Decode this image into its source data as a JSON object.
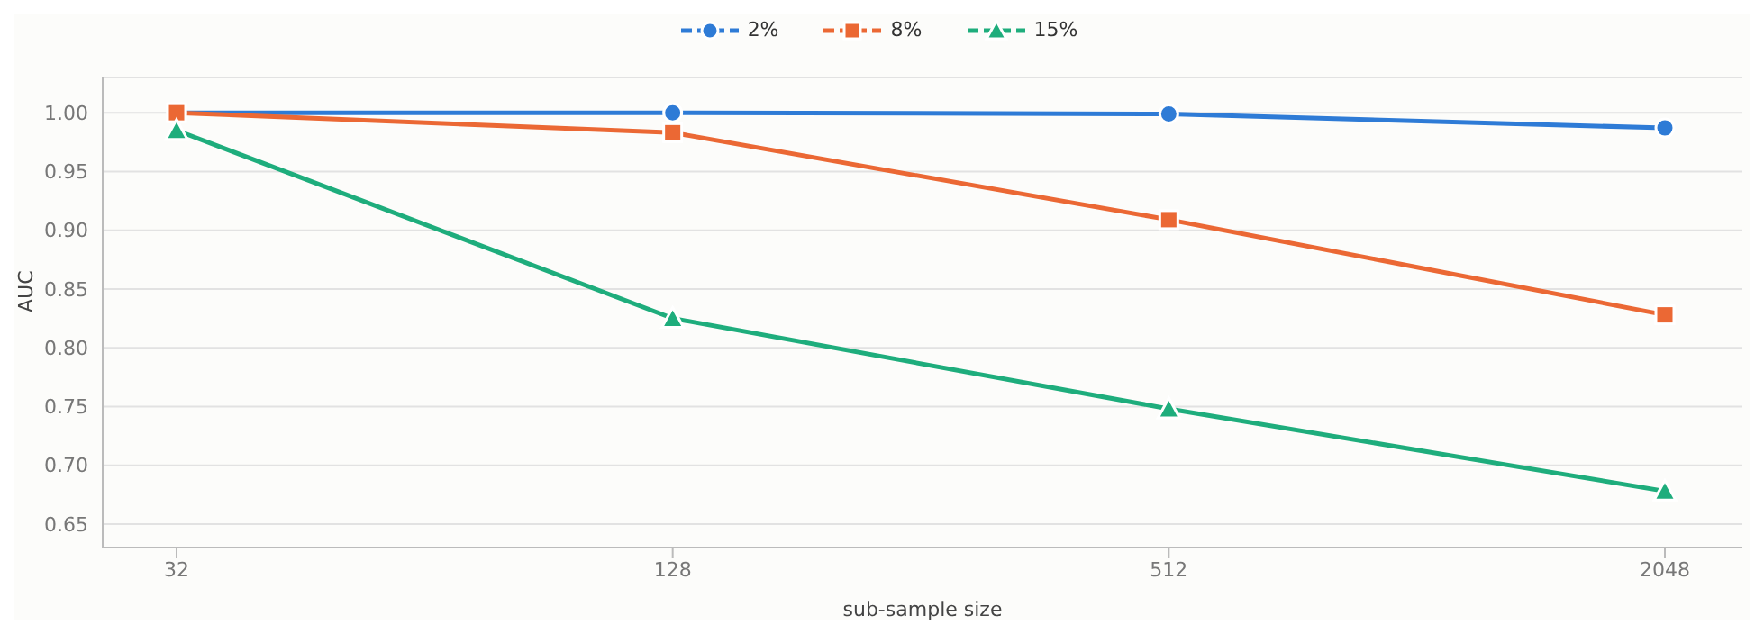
{
  "chart_data": {
    "type": "line",
    "xlabel": "sub-sample size",
    "ylabel": "AUC",
    "categories": [
      "32",
      "128",
      "512",
      "2048"
    ],
    "series": [
      {
        "name": "2%",
        "color": "#2e7bd6",
        "marker": "circle",
        "values": [
          1.0,
          1.0,
          0.999,
          0.987
        ]
      },
      {
        "name": "8%",
        "color": "#eb6834",
        "marker": "square",
        "values": [
          1.0,
          0.983,
          0.909,
          0.828
        ]
      },
      {
        "name": "15%",
        "color": "#1ead7c",
        "marker": "triangle",
        "values": [
          0.985,
          0.825,
          0.748,
          0.678
        ]
      }
    ],
    "ylim": [
      0.63,
      1.03
    ],
    "yticks": [
      {
        "value": 0.65,
        "label": "0.65"
      },
      {
        "value": 0.7,
        "label": "0.70"
      },
      {
        "value": 0.75,
        "label": "0.75"
      },
      {
        "value": 0.8,
        "label": "0.80"
      },
      {
        "value": 0.85,
        "label": "0.85"
      },
      {
        "value": 0.9,
        "label": "0.90"
      },
      {
        "value": 0.95,
        "label": "0.95"
      },
      {
        "value": 1.0,
        "label": "1.00"
      }
    ],
    "grid": "y",
    "legend": "top",
    "line_style": "solid"
  }
}
